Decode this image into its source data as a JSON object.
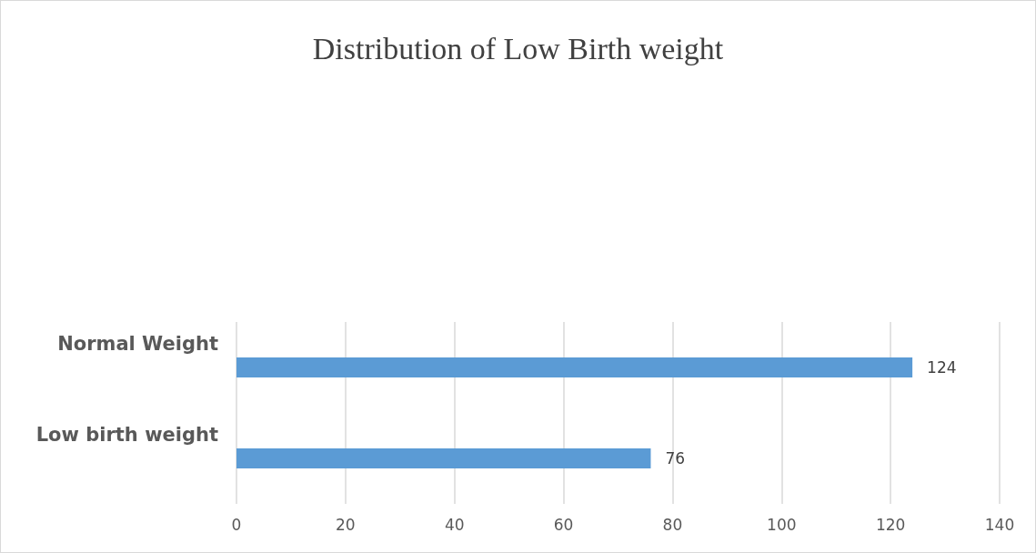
{
  "chart_data": {
    "type": "bar",
    "orientation": "horizontal",
    "title": "Distribution of Low Birth weight",
    "categories": [
      "Normal Weight",
      "Low birth weight"
    ],
    "values": [
      124,
      76
    ],
    "color": "#5b9bd5",
    "data_labels": true,
    "xlim": [
      0,
      140
    ],
    "xticks": [
      0,
      20,
      40,
      60,
      80,
      100,
      120,
      140
    ],
    "grid": "x"
  }
}
